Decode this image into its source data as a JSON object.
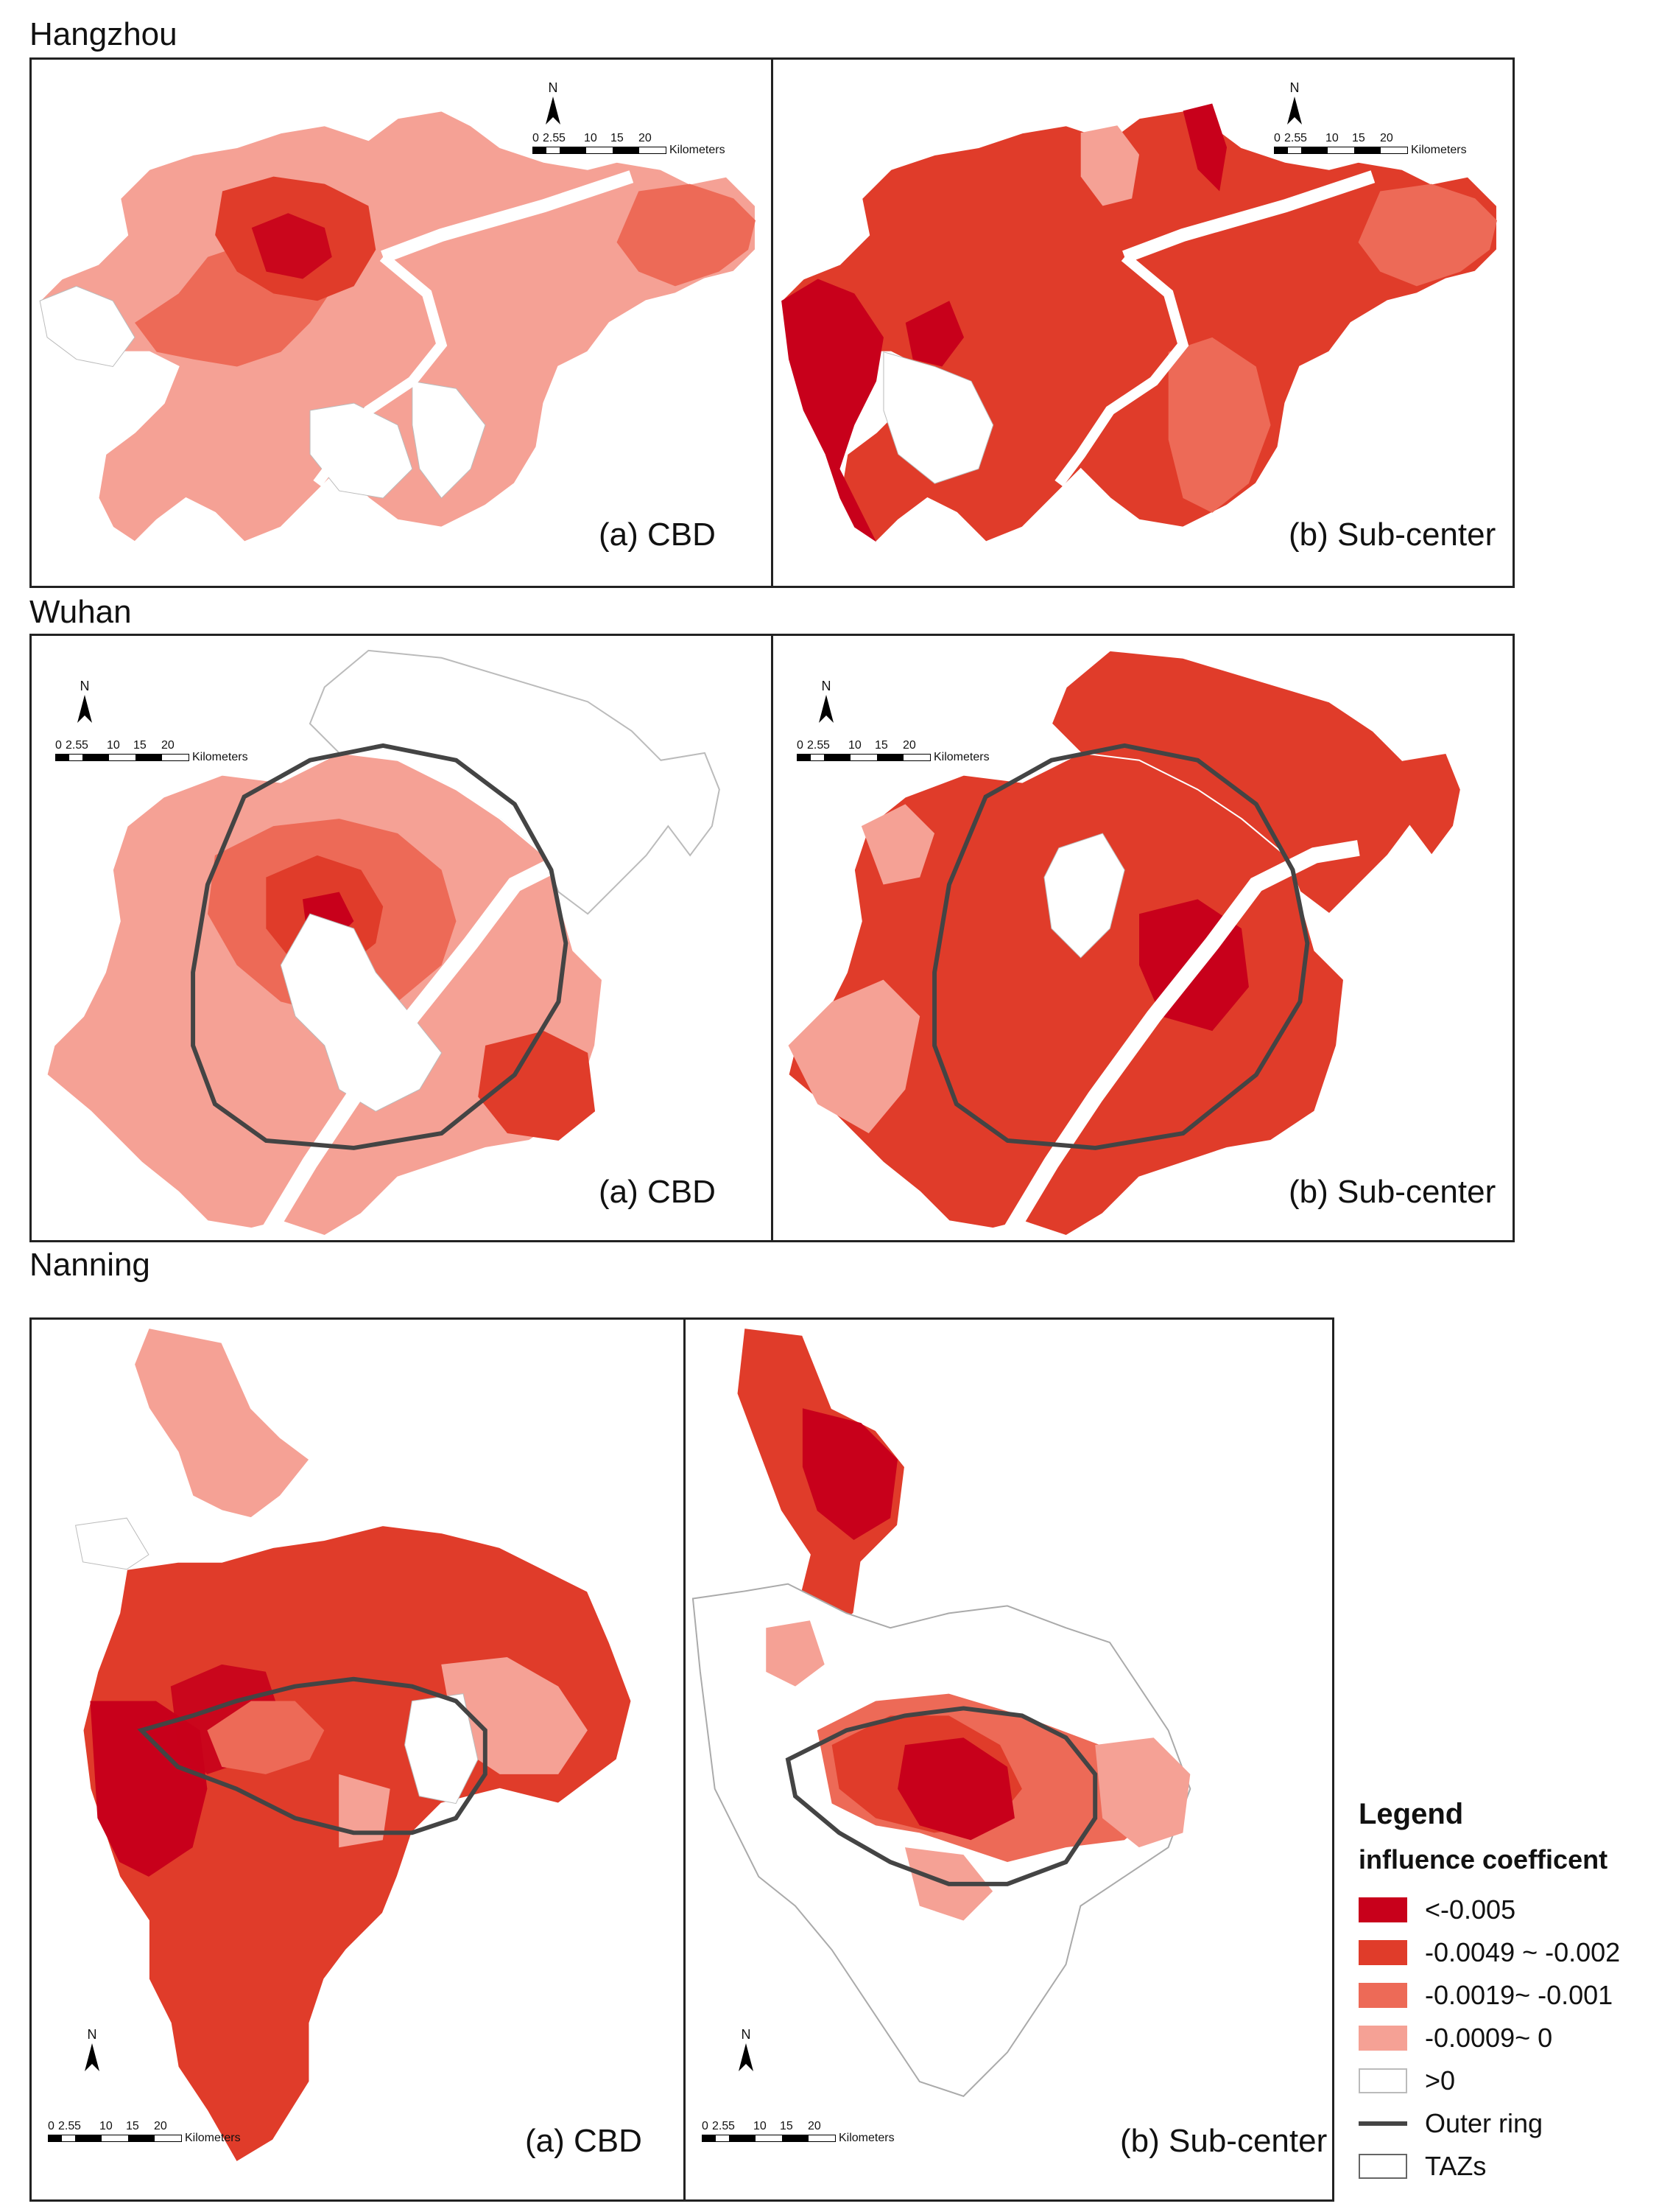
{
  "colors": {
    "lt_-0.005": "#c8001b",
    "-0.0049_-0.002": "#e03c2a",
    "-0.0019_-0.001": "#ed6a57",
    "-0.0009_0": "#f5a195",
    "gt0": "#ffffff",
    "outer_ring": "#444444",
    "taz_line": "#b0b0b0"
  },
  "cities": [
    {
      "name": "Hangzhou",
      "panels": [
        {
          "label": "(a) CBD"
        },
        {
          "label": "(b) Sub-center"
        }
      ]
    },
    {
      "name": "Wuhan",
      "panels": [
        {
          "label": "(a) CBD"
        },
        {
          "label": "(b) Sub-center"
        }
      ]
    },
    {
      "name": "Nanning",
      "panels": [
        {
          "label": "(a) CBD"
        },
        {
          "label": "(b) Sub-center"
        }
      ]
    }
  ],
  "north_arrow": "N",
  "scale_bar": {
    "ticks": [
      "0",
      "2.5",
      "5",
      "10",
      "15",
      "20"
    ],
    "unit": "Kilometers"
  },
  "legend": {
    "title": "Legend",
    "subtitle": "influence coefficent",
    "items": [
      {
        "label": "<-0.005",
        "icon": "fill-swatch"
      },
      {
        "label": "-0.0049 ~ -0.002",
        "icon": "fill-swatch"
      },
      {
        "label": "-0.0019~ -0.001",
        "icon": "fill-swatch"
      },
      {
        "label": "-0.0009~ 0",
        "icon": "fill-swatch"
      },
      {
        "label": ">0",
        "icon": "fill-swatch"
      },
      {
        "label": "Outer ring",
        "icon": "line-swatch"
      },
      {
        "label": "TAZs",
        "icon": "outline-swatch"
      }
    ]
  }
}
